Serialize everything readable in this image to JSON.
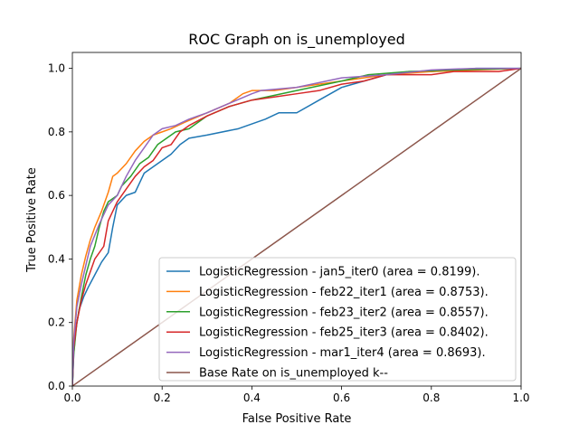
{
  "chart_data": {
    "type": "line",
    "title": "ROC Graph on is_unemployed",
    "xlabel": "False Positive Rate",
    "ylabel": "True Positive Rate",
    "xlim": [
      0.0,
      1.0
    ],
    "ylim": [
      0.0,
      1.05
    ],
    "xticks": [
      0.0,
      0.2,
      0.4,
      0.6,
      0.8,
      1.0
    ],
    "yticks": [
      0.0,
      0.2,
      0.4,
      0.6,
      0.8,
      1.0
    ],
    "xtick_labels": [
      "0.0",
      "0.2",
      "0.4",
      "0.6",
      "0.8",
      "1.0"
    ],
    "ytick_labels": [
      "0.0",
      "0.2",
      "0.4",
      "0.6",
      "0.8",
      "1.0"
    ],
    "grid": false,
    "legend_position": "lower-right",
    "series": [
      {
        "name": "LogisticRegression - jan5_iter0 (area = 0.8199).",
        "color": "#1f77b4",
        "points": [
          [
            0,
            0
          ],
          [
            0.003,
            0.1
          ],
          [
            0.008,
            0.18
          ],
          [
            0.015,
            0.24
          ],
          [
            0.025,
            0.28
          ],
          [
            0.035,
            0.31
          ],
          [
            0.05,
            0.35
          ],
          [
            0.065,
            0.39
          ],
          [
            0.08,
            0.42
          ],
          [
            0.09,
            0.5
          ],
          [
            0.1,
            0.57
          ],
          [
            0.12,
            0.6
          ],
          [
            0.14,
            0.61
          ],
          [
            0.15,
            0.64
          ],
          [
            0.16,
            0.67
          ],
          [
            0.18,
            0.69
          ],
          [
            0.2,
            0.71
          ],
          [
            0.22,
            0.73
          ],
          [
            0.24,
            0.76
          ],
          [
            0.26,
            0.78
          ],
          [
            0.3,
            0.79
          ],
          [
            0.37,
            0.81
          ],
          [
            0.41,
            0.83
          ],
          [
            0.43,
            0.84
          ],
          [
            0.46,
            0.86
          ],
          [
            0.5,
            0.86
          ],
          [
            0.55,
            0.9
          ],
          [
            0.6,
            0.94
          ],
          [
            0.65,
            0.96
          ],
          [
            0.7,
            0.98
          ],
          [
            0.75,
            0.99
          ],
          [
            0.8,
            0.99
          ],
          [
            0.9,
            1.0
          ],
          [
            1.0,
            1.0
          ]
        ]
      },
      {
        "name": "LogisticRegression - feb22_iter1 (area = 0.8753).",
        "color": "#ff7f0e",
        "points": [
          [
            0,
            0
          ],
          [
            0.003,
            0.15
          ],
          [
            0.01,
            0.27
          ],
          [
            0.02,
            0.35
          ],
          [
            0.03,
            0.41
          ],
          [
            0.04,
            0.46
          ],
          [
            0.05,
            0.5
          ],
          [
            0.065,
            0.55
          ],
          [
            0.08,
            0.61
          ],
          [
            0.09,
            0.66
          ],
          [
            0.1,
            0.67
          ],
          [
            0.12,
            0.7
          ],
          [
            0.14,
            0.74
          ],
          [
            0.16,
            0.77
          ],
          [
            0.18,
            0.79
          ],
          [
            0.2,
            0.8
          ],
          [
            0.22,
            0.81
          ],
          [
            0.25,
            0.83
          ],
          [
            0.3,
            0.86
          ],
          [
            0.35,
            0.89
          ],
          [
            0.38,
            0.92
          ],
          [
            0.4,
            0.93
          ],
          [
            0.45,
            0.93
          ],
          [
            0.5,
            0.94
          ],
          [
            0.6,
            0.96
          ],
          [
            0.7,
            0.98
          ],
          [
            0.8,
            0.99
          ],
          [
            0.9,
            0.995
          ],
          [
            1.0,
            1.0
          ]
        ]
      },
      {
        "name": "LogisticRegression - feb23_iter2 (area = 0.8557).",
        "color": "#2ca02c",
        "points": [
          [
            0,
            0
          ],
          [
            0.003,
            0.1
          ],
          [
            0.01,
            0.2
          ],
          [
            0.02,
            0.28
          ],
          [
            0.03,
            0.35
          ],
          [
            0.04,
            0.4
          ],
          [
            0.05,
            0.44
          ],
          [
            0.06,
            0.5
          ],
          [
            0.07,
            0.55
          ],
          [
            0.08,
            0.58
          ],
          [
            0.1,
            0.6
          ],
          [
            0.11,
            0.63
          ],
          [
            0.13,
            0.66
          ],
          [
            0.15,
            0.7
          ],
          [
            0.17,
            0.72
          ],
          [
            0.19,
            0.76
          ],
          [
            0.21,
            0.78
          ],
          [
            0.23,
            0.8
          ],
          [
            0.26,
            0.81
          ],
          [
            0.3,
            0.85
          ],
          [
            0.35,
            0.88
          ],
          [
            0.4,
            0.9
          ],
          [
            0.5,
            0.93
          ],
          [
            0.6,
            0.96
          ],
          [
            0.66,
            0.98
          ],
          [
            0.75,
            0.99
          ],
          [
            0.85,
            0.995
          ],
          [
            1.0,
            1.0
          ]
        ]
      },
      {
        "name": "LogisticRegression - feb25_iter3 (area = 0.8402).",
        "color": "#d62728",
        "points": [
          [
            0,
            0
          ],
          [
            0.003,
            0.12
          ],
          [
            0.01,
            0.2
          ],
          [
            0.02,
            0.27
          ],
          [
            0.03,
            0.32
          ],
          [
            0.04,
            0.36
          ],
          [
            0.05,
            0.4
          ],
          [
            0.07,
            0.44
          ],
          [
            0.08,
            0.52
          ],
          [
            0.09,
            0.55
          ],
          [
            0.1,
            0.58
          ],
          [
            0.12,
            0.62
          ],
          [
            0.14,
            0.66
          ],
          [
            0.16,
            0.69
          ],
          [
            0.18,
            0.71
          ],
          [
            0.2,
            0.75
          ],
          [
            0.22,
            0.76
          ],
          [
            0.24,
            0.8
          ],
          [
            0.26,
            0.82
          ],
          [
            0.3,
            0.85
          ],
          [
            0.35,
            0.88
          ],
          [
            0.4,
            0.9
          ],
          [
            0.45,
            0.91
          ],
          [
            0.5,
            0.92
          ],
          [
            0.55,
            0.93
          ],
          [
            0.6,
            0.95
          ],
          [
            0.65,
            0.96
          ],
          [
            0.7,
            0.98
          ],
          [
            0.8,
            0.98
          ],
          [
            0.85,
            0.99
          ],
          [
            0.95,
            0.99
          ],
          [
            1.0,
            1.0
          ]
        ]
      },
      {
        "name": "LogisticRegression - mar1_iter4 (area = 0.8693).",
        "color": "#9467bd",
        "points": [
          [
            0,
            0
          ],
          [
            0.003,
            0.14
          ],
          [
            0.01,
            0.25
          ],
          [
            0.02,
            0.32
          ],
          [
            0.03,
            0.38
          ],
          [
            0.04,
            0.44
          ],
          [
            0.06,
            0.51
          ],
          [
            0.08,
            0.57
          ],
          [
            0.1,
            0.6
          ],
          [
            0.12,
            0.66
          ],
          [
            0.14,
            0.71
          ],
          [
            0.16,
            0.75
          ],
          [
            0.18,
            0.79
          ],
          [
            0.2,
            0.81
          ],
          [
            0.23,
            0.82
          ],
          [
            0.26,
            0.84
          ],
          [
            0.3,
            0.86
          ],
          [
            0.35,
            0.89
          ],
          [
            0.4,
            0.92
          ],
          [
            0.42,
            0.93
          ],
          [
            0.5,
            0.94
          ],
          [
            0.6,
            0.97
          ],
          [
            0.7,
            0.98
          ],
          [
            0.8,
            0.995
          ],
          [
            0.9,
            1.0
          ],
          [
            1.0,
            1.0
          ]
        ]
      },
      {
        "name": "Base Rate on is_unemployed k--",
        "color": "#8c564b",
        "points": [
          [
            0,
            0
          ],
          [
            1,
            1
          ]
        ]
      }
    ]
  }
}
